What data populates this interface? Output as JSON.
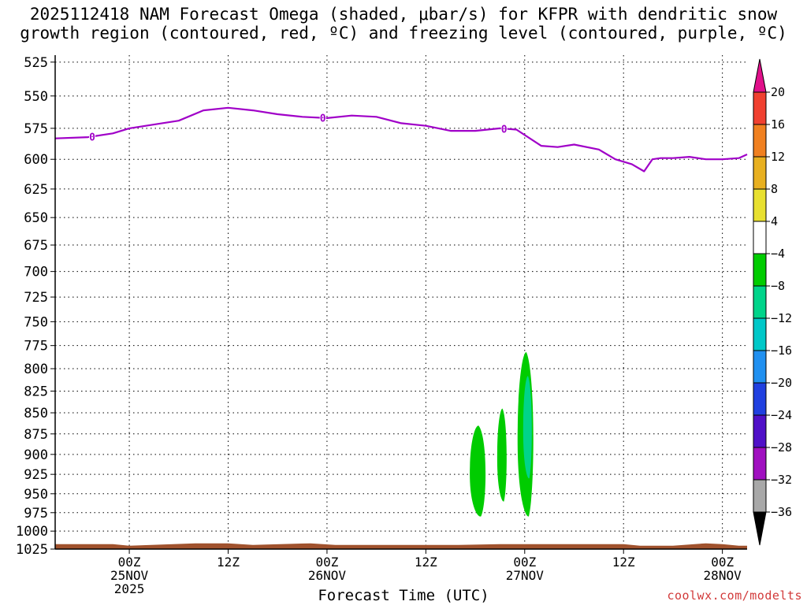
{
  "title": {
    "line1": "2025112418 NAM Forecast Omega (shaded, μbar/s) for KFPR with dendritic snow",
    "line2": "growth region (contoured, red, ºC) and freezing level (contoured, purple, ºC)"
  },
  "credit": "coolwx.com/modelts",
  "chart_data": {
    "type": "heatmap",
    "xlabel": "Forecast Time (UTC)",
    "ylabel": "",
    "x_range_hours": [
      -9,
      75
    ],
    "y_range_hpa": [
      1025,
      520
    ],
    "y_scale": "log-pressure",
    "grid": true,
    "y_ticks": [
      525,
      550,
      575,
      600,
      625,
      650,
      675,
      700,
      725,
      750,
      775,
      800,
      825,
      850,
      875,
      900,
      925,
      950,
      975,
      1000,
      1025
    ],
    "x_ticks": [
      {
        "hour": 0,
        "lines": [
          "00Z",
          "25NOV",
          "2025"
        ]
      },
      {
        "hour": 12,
        "lines": [
          "12Z"
        ]
      },
      {
        "hour": 24,
        "lines": [
          "00Z",
          "26NOV"
        ]
      },
      {
        "hour": 36,
        "lines": [
          "12Z"
        ]
      },
      {
        "hour": 48,
        "lines": [
          "00Z",
          "27NOV"
        ]
      },
      {
        "hour": 60,
        "lines": [
          "12Z"
        ]
      },
      {
        "hour": 72,
        "lines": [
          "00Z",
          "28NOV"
        ]
      }
    ],
    "freezing_level": {
      "label": "0",
      "color": "#a000c8",
      "label_hours": [
        -4.5,
        23.5,
        45.5
      ],
      "hours": [
        -9,
        -5,
        -2,
        0,
        3,
        6,
        9,
        12,
        15,
        18,
        21,
        24,
        27,
        30,
        33,
        36,
        39,
        42,
        45,
        47,
        50,
        52,
        54,
        57,
        59,
        61,
        62.5,
        63.5,
        64.5,
        66,
        68,
        70,
        72,
        74,
        75
      ],
      "pressure_hpa": [
        583,
        582,
        579,
        575,
        572,
        569,
        561,
        559,
        561,
        564,
        566,
        567,
        565,
        566,
        571,
        573,
        577,
        577,
        575,
        576,
        589,
        590,
        588,
        592,
        600,
        604,
        610,
        600,
        599,
        599,
        598,
        600,
        600,
        599,
        596
      ]
    },
    "omega_regions": [
      {
        "label": "-8 to -4",
        "color": "#00cc00",
        "t_center": 42.4,
        "half_width_h": 1.0,
        "p_top": 865,
        "p_bottom": 980
      },
      {
        "label": "-8 to -4",
        "color": "#00cc00",
        "t_center": 45.3,
        "half_width_h": 0.6,
        "p_top": 845,
        "p_bottom": 960
      },
      {
        "label": "-8 to -4",
        "color": "#00cc00",
        "t_center": 48.2,
        "half_width_h": 1.0,
        "p_top": 782,
        "p_bottom": 980
      },
      {
        "label": "-12 to -8",
        "color": "#00d48a",
        "t_center": 48.4,
        "half_width_h": 0.55,
        "p_top": 808,
        "p_bottom": 930
      }
    ],
    "terrain": {
      "color": "#a0522d",
      "surface_pressure_hpa": 1018
    },
    "colorbar": {
      "levels": [
        20,
        16,
        12,
        8,
        4,
        -4,
        -8,
        -12,
        -16,
        -20,
        -24,
        -28,
        -32,
        -36
      ],
      "bins": [
        {
          "from": 16,
          "to": 20,
          "color": "#f04030"
        },
        {
          "from": 12,
          "to": 16,
          "color": "#f08020"
        },
        {
          "from": 8,
          "to": 12,
          "color": "#e8b020"
        },
        {
          "from": 4,
          "to": 8,
          "color": "#e8e030"
        },
        {
          "from": -4,
          "to": 4,
          "color": "#ffffff"
        },
        {
          "from": -8,
          "to": -4,
          "color": "#00cc00"
        },
        {
          "from": -12,
          "to": -8,
          "color": "#00d48a"
        },
        {
          "from": -16,
          "to": -12,
          "color": "#00c8c8"
        },
        {
          "from": -20,
          "to": -16,
          "color": "#2090f0"
        },
        {
          "from": -24,
          "to": -20,
          "color": "#2040e0"
        },
        {
          "from": -28,
          "to": -24,
          "color": "#5010c8"
        },
        {
          "from": -32,
          "to": -28,
          "color": "#a010c0"
        },
        {
          "from": -36,
          "to": -32,
          "color": "#a8a8a8"
        }
      ],
      "top_arrow_color": "#e0108a",
      "bottom_arrow_color": "#000000"
    }
  }
}
